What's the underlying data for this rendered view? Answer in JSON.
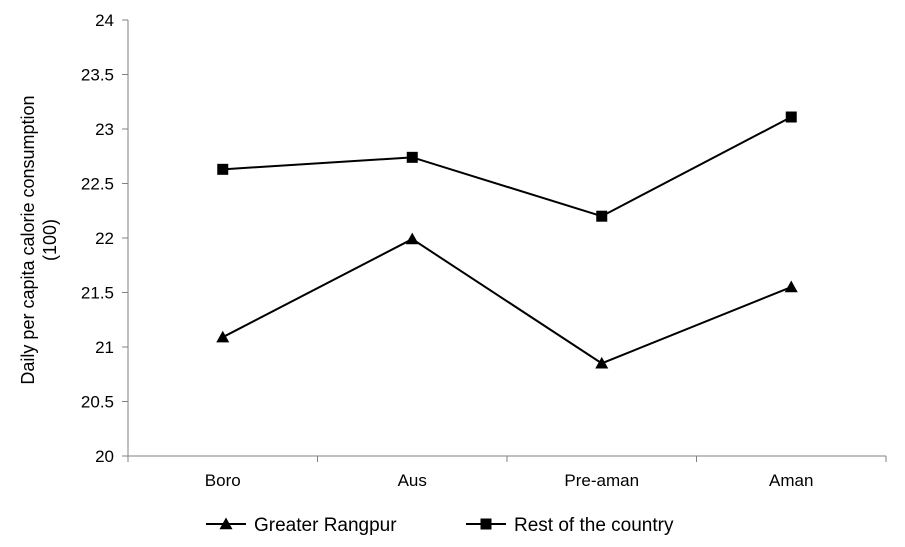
{
  "chart_data": {
    "type": "line",
    "categories": [
      "Boro",
      "Aus",
      "Pre-aman",
      "Aman"
    ],
    "series": [
      {
        "name": "Greater Rangpur",
        "marker": "triangle",
        "values": [
          21.09,
          21.99,
          20.85,
          21.55
        ]
      },
      {
        "name": "Rest of the country",
        "marker": "square",
        "values": [
          22.63,
          22.74,
          22.2,
          23.11
        ]
      }
    ],
    "title": "",
    "xlabel": "",
    "ylabel": [
      "Daily per capita calorie consumption",
      "(100)"
    ],
    "ylim": [
      20,
      24
    ],
    "yticks": [
      "20",
      "20.5",
      "21",
      "21.5",
      "22",
      "22.5",
      "23",
      "23.5",
      "24"
    ],
    "grid": false,
    "legend_position": "bottom",
    "line_color": "#000000"
  }
}
